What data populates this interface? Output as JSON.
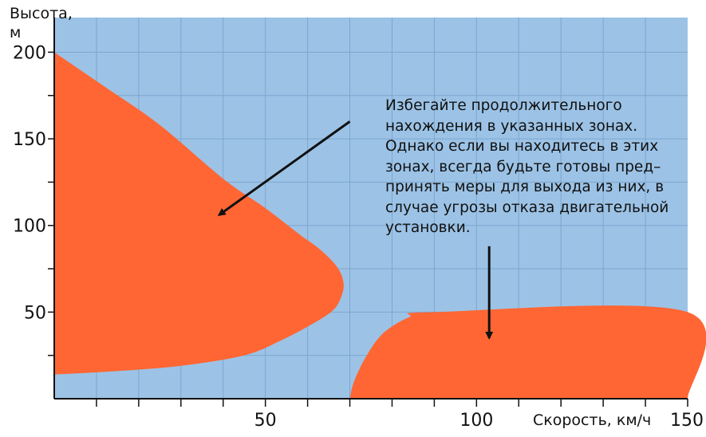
{
  "chart_data": {
    "type": "area",
    "ylabel": [
      "Высота,",
      "м"
    ],
    "xlabel": "Скорость, км/ч",
    "xlim": [
      0,
      150
    ],
    "ylim": [
      0,
      220
    ],
    "x_ticks": [
      50,
      100,
      150
    ],
    "y_ticks": [
      50,
      100,
      150,
      200
    ],
    "x_grid_step": 10,
    "y_grid_step": 25,
    "grid": true,
    "background_color": "#9cc3e6",
    "zone_color": "#ff6633",
    "grid_color": "#7ea6cf",
    "zones": [
      {
        "name": "",
        "points": [
          [
            0,
            200
          ],
          [
            12,
            180
          ],
          [
            25,
            158
          ],
          [
            40,
            127
          ],
          [
            50,
            110
          ],
          [
            58,
            95
          ],
          [
            63,
            86
          ],
          [
            67,
            76
          ],
          [
            68.5,
            67
          ],
          [
            68,
            59
          ],
          [
            66,
            51
          ],
          [
            61,
            43
          ],
          [
            54,
            34
          ],
          [
            45,
            25
          ],
          [
            30,
            19
          ],
          [
            15,
            16
          ],
          [
            0,
            14
          ]
        ]
      },
      {
        "name": "",
        "points": [
          [
            70,
            0
          ],
          [
            71,
            10
          ],
          [
            74,
            25
          ],
          [
            78,
            38
          ],
          [
            84,
            47
          ],
          [
            90,
            50
          ],
          [
            150,
            50
          ],
          [
            150,
            0
          ]
        ]
      }
    ],
    "annotation_lines": [
      "Избегайте продолжительного",
      "нахождения в указанных зонах.",
      "Однако если вы находитесь в этих",
      "зонах, всегда будьте готовы пред–",
      "принять меры для выхода из них, в",
      "случае угрозы отказа двигательной",
      "установки."
    ],
    "arrows": [
      {
        "from": [
          70,
          160
        ],
        "to": [
          39,
          106
        ]
      },
      {
        "from": [
          103,
          88
        ],
        "to": [
          103,
          35
        ]
      }
    ]
  }
}
